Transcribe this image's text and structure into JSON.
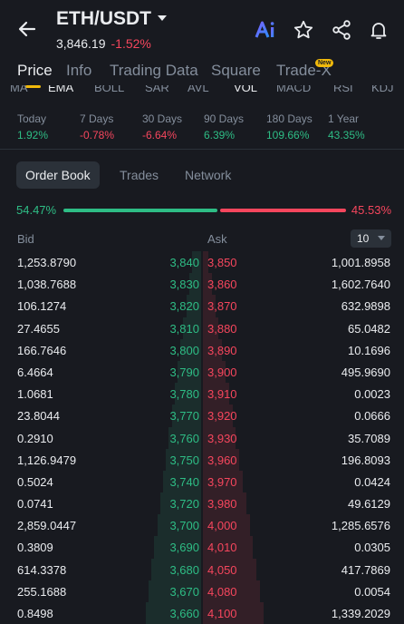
{
  "header": {
    "pair": "ETH/USDT",
    "last_price": "3,846.19",
    "change": "-1.52%"
  },
  "tabs": [
    {
      "label": "Price",
      "active": true
    },
    {
      "label": "Info"
    },
    {
      "label": "Trading Data"
    },
    {
      "label": "Square"
    },
    {
      "label": "Trade-X",
      "badge": "New"
    }
  ],
  "indicators": [
    "MA",
    "EMA",
    "BOLL",
    "SAR",
    "AVL",
    "VOL",
    "MACD",
    "RSI",
    "KDJ"
  ],
  "periods": [
    {
      "label": "Today",
      "value": "1.92%",
      "dir": "up"
    },
    {
      "label": "7 Days",
      "value": "-0.78%",
      "dir": "down"
    },
    {
      "label": "30 Days",
      "value": "-6.64%",
      "dir": "down"
    },
    {
      "label": "90 Days",
      "value": "6.39%",
      "dir": "up"
    },
    {
      "label": "180 Days",
      "value": "109.66%",
      "dir": "up"
    },
    {
      "label": "1 Year",
      "value": "43.35%",
      "dir": "up"
    }
  ],
  "subtabs": [
    "Order Book",
    "Trades",
    "Network"
  ],
  "ratio": {
    "bid": "54.47%",
    "ask": "45.53%",
    "bid_fraction": 0.5447
  },
  "order_book": {
    "bid_label": "Bid",
    "ask_label": "Ask",
    "depth": "10",
    "rows": [
      {
        "bid_amt": "1,253.8790",
        "bid_price": "3,840",
        "ask_price": "3,850",
        "ask_amt": "1,001.8958"
      },
      {
        "bid_amt": "1,038.7688",
        "bid_price": "3,830",
        "ask_price": "3,860",
        "ask_amt": "1,602.7640"
      },
      {
        "bid_amt": "106.1274",
        "bid_price": "3,820",
        "ask_price": "3,870",
        "ask_amt": "632.9898"
      },
      {
        "bid_amt": "27.4655",
        "bid_price": "3,810",
        "ask_price": "3,880",
        "ask_amt": "65.0482"
      },
      {
        "bid_amt": "166.7646",
        "bid_price": "3,800",
        "ask_price": "3,890",
        "ask_amt": "10.1696"
      },
      {
        "bid_amt": "6.4664",
        "bid_price": "3,790",
        "ask_price": "3,900",
        "ask_amt": "495.9690"
      },
      {
        "bid_amt": "1.0681",
        "bid_price": "3,780",
        "ask_price": "3,910",
        "ask_amt": "0.0023"
      },
      {
        "bid_amt": "23.8044",
        "bid_price": "3,770",
        "ask_price": "3,920",
        "ask_amt": "0.0666"
      },
      {
        "bid_amt": "0.2910",
        "bid_price": "3,760",
        "ask_price": "3,930",
        "ask_amt": "35.7089"
      },
      {
        "bid_amt": "1,126.9479",
        "bid_price": "3,750",
        "ask_price": "3,960",
        "ask_amt": "196.8093"
      },
      {
        "bid_amt": "0.5024",
        "bid_price": "3,740",
        "ask_price": "3,970",
        "ask_amt": "0.0424"
      },
      {
        "bid_amt": "0.0741",
        "bid_price": "3,720",
        "ask_price": "3,980",
        "ask_amt": "49.6129"
      },
      {
        "bid_amt": "2,859.0447",
        "bid_price": "3,700",
        "ask_price": "4,000",
        "ask_amt": "1,285.6576"
      },
      {
        "bid_amt": "0.3809",
        "bid_price": "3,690",
        "ask_price": "4,010",
        "ask_amt": "0.0305"
      },
      {
        "bid_amt": "614.3378",
        "bid_price": "3,680",
        "ask_price": "4,050",
        "ask_amt": "417.7869"
      },
      {
        "bid_amt": "255.1688",
        "bid_price": "3,670",
        "ask_price": "4,080",
        "ask_amt": "0.0054"
      },
      {
        "bid_amt": "0.8498",
        "bid_price": "3,660",
        "ask_price": "4,100",
        "ask_amt": "1,339.2029"
      }
    ]
  }
}
